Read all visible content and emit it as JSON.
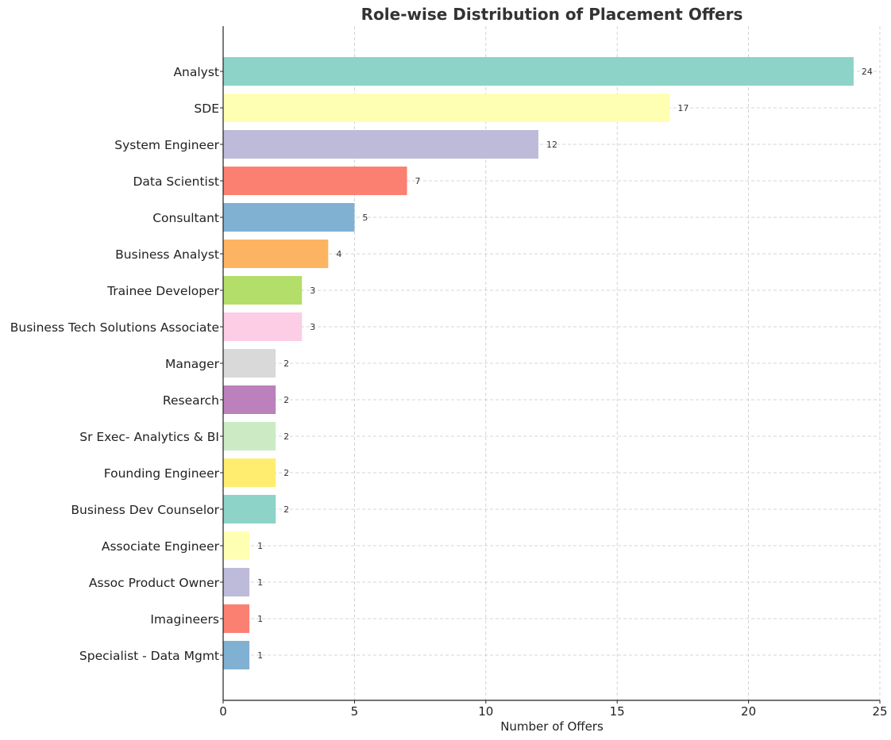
{
  "chart_data": {
    "type": "bar",
    "orientation": "horizontal",
    "title": "Role-wise Distribution of Placement Offers",
    "xlabel": "Number of Offers",
    "ylabel": "",
    "xlim": [
      0,
      25
    ],
    "xticks": [
      0,
      5,
      10,
      15,
      20,
      25
    ],
    "grid": true,
    "categories": [
      "Analyst",
      "SDE",
      "System Engineer",
      "Data Scientist",
      "Consultant",
      "Business Analyst",
      "Trainee Developer",
      "Business Tech Solutions Associate",
      "Manager",
      "Research",
      "Sr Exec- Analytics & BI",
      "Founding Engineer",
      "Business Dev Counselor",
      "Associate Engineer",
      "Assoc Product Owner",
      "Imagineers",
      "Specialist - Data Mgmt"
    ],
    "values": [
      24,
      17,
      12,
      7,
      5,
      4,
      3,
      3,
      2,
      2,
      2,
      2,
      2,
      1,
      1,
      1,
      1
    ],
    "colors": [
      "#8dd3c7",
      "#ffffb3",
      "#bebada",
      "#fb8072",
      "#80b1d3",
      "#fdb462",
      "#b3de69",
      "#fccde5",
      "#d9d9d9",
      "#bc80bd",
      "#ccebc5",
      "#ffed6f",
      "#8dd3c7",
      "#ffffb3",
      "#bebada",
      "#fb8072",
      "#80b1d3"
    ]
  }
}
